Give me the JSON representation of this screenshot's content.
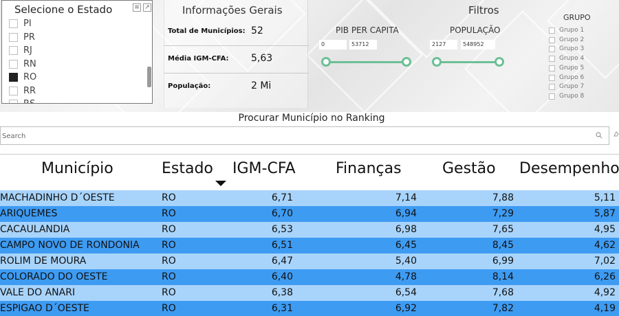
{
  "state_slicer": {
    "title": "Selecione o Estado",
    "items": [
      {
        "label": "PI",
        "checked": false
      },
      {
        "label": "PR",
        "checked": false
      },
      {
        "label": "RJ",
        "checked": false
      },
      {
        "label": "RN",
        "checked": false
      },
      {
        "label": "RO",
        "checked": true
      },
      {
        "label": "RR",
        "checked": false
      },
      {
        "label": "RS",
        "checked": false
      }
    ]
  },
  "info": {
    "title": "Informações Gerais",
    "rows": [
      {
        "label": "Total de Municípios:",
        "value": "52"
      },
      {
        "label": "Média IGM-CFA:",
        "value": "5,63"
      },
      {
        "label": "População:",
        "value": "2 Mi"
      }
    ]
  },
  "filters": {
    "title": "Filtros",
    "pib": {
      "label": "PIB PER CAPITA",
      "min": "0",
      "max": "53712"
    },
    "pop": {
      "label": "POPULAÇÃO",
      "min": "2127",
      "max": "548952"
    },
    "grupo": {
      "title": "GRUPO",
      "items": [
        "Grupo 1",
        "Grupo 2",
        "Grupo 3",
        "Grupo 4",
        "Grupo 5",
        "Grupo 6",
        "Grupo 7",
        "Grupo 8"
      ]
    }
  },
  "search": {
    "title": "Procurar Município no Ranking",
    "placeholder": "Search"
  },
  "table": {
    "headers": {
      "municipio": "Município",
      "estado": "Estado",
      "igm": "IGM-CFA",
      "financas": "Finanças",
      "gestao": "Gestão",
      "desempenho": "Desempenho"
    },
    "rows": [
      {
        "municipio": "MACHADINHO D´OESTE",
        "estado": "RO",
        "igm": "6,71",
        "financas": "7,14",
        "gestao": "7,88",
        "desempenho": "5,11"
      },
      {
        "municipio": "ARIQUEMES",
        "estado": "RO",
        "igm": "6,70",
        "financas": "6,94",
        "gestao": "7,29",
        "desempenho": "5,87"
      },
      {
        "municipio": "CACAULANDIA",
        "estado": "RO",
        "igm": "6,53",
        "financas": "6,98",
        "gestao": "7,65",
        "desempenho": "4,95"
      },
      {
        "municipio": "CAMPO NOVO DE RONDONIA",
        "estado": "RO",
        "igm": "6,51",
        "financas": "6,45",
        "gestao": "8,45",
        "desempenho": "4,62"
      },
      {
        "municipio": "ROLIM DE MOURA",
        "estado": "RO",
        "igm": "6,47",
        "financas": "5,40",
        "gestao": "6,99",
        "desempenho": "7,02"
      },
      {
        "municipio": "COLORADO DO OESTE",
        "estado": "RO",
        "igm": "6,40",
        "financas": "4,78",
        "gestao": "8,14",
        "desempenho": "6,26"
      },
      {
        "municipio": "VALE DO ANARI",
        "estado": "RO",
        "igm": "6,38",
        "financas": "6,54",
        "gestao": "7,68",
        "desempenho": "4,92"
      },
      {
        "municipio": "ESPIGAO D´OESTE",
        "estado": "RO",
        "igm": "6,31",
        "financas": "6,92",
        "gestao": "7,82",
        "desempenho": "4,19"
      }
    ]
  }
}
